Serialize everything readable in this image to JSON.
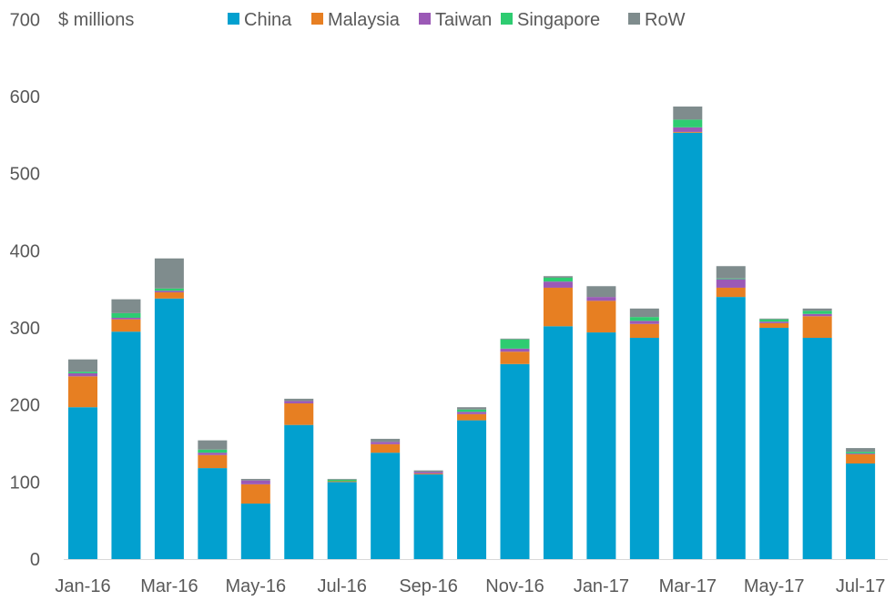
{
  "chart_data": {
    "type": "bar",
    "stacked": true,
    "title": "",
    "ylabel": "$ millions",
    "xlabel": "",
    "ylim": [
      0,
      700
    ],
    "yticks": [
      0,
      100,
      200,
      300,
      400,
      500,
      600,
      700
    ],
    "grid": false,
    "legend_position": "top",
    "categories": [
      "Jan-16",
      "Feb-16",
      "Mar-16",
      "Apr-16",
      "May-16",
      "Jun-16",
      "Jul-16",
      "Aug-16",
      "Sep-16",
      "Oct-16",
      "Nov-16",
      "Dec-16",
      "Jan-17",
      "Feb-17",
      "Mar-17",
      "Apr-17",
      "May-17",
      "Jun-17",
      "Jul-17"
    ],
    "xtick_labels": [
      "Jan-16",
      "Mar-16",
      "May-16",
      "Jul-16",
      "Sep-16",
      "Nov-16",
      "Jan-17",
      "Mar-17",
      "May-17",
      "Jul-17"
    ],
    "series": [
      {
        "name": "China",
        "color": "#02a0cf",
        "values": [
          197,
          295,
          338,
          118,
          72,
          174,
          100,
          138,
          110,
          180,
          253,
          302,
          294,
          287,
          553,
          340,
          300,
          287,
          124
        ]
      },
      {
        "name": "Malaysia",
        "color": "#e77f22",
        "values": [
          40,
          16,
          8,
          17,
          25,
          28,
          1,
          11,
          1,
          8,
          16,
          50,
          41,
          18,
          1,
          12,
          6,
          28,
          12
        ]
      },
      {
        "name": "Taiwan",
        "color": "#9b59b6",
        "values": [
          4,
          2,
          2,
          3,
          5,
          3,
          0,
          3,
          2,
          3,
          4,
          8,
          5,
          4,
          6,
          11,
          2,
          3,
          1
        ]
      },
      {
        "name": "Singapore",
        "color": "#2ecc71",
        "values": [
          2,
          6,
          3,
          4,
          0,
          0,
          2,
          0,
          0,
          3,
          12,
          5,
          0,
          5,
          10,
          1,
          3,
          4,
          2
        ]
      },
      {
        "name": "RoW",
        "color": "#7f8c8d",
        "values": [
          16,
          18,
          39,
          12,
          2,
          3,
          1,
          4,
          2,
          3,
          1,
          2,
          14,
          11,
          17,
          16,
          1,
          3,
          5
        ]
      }
    ]
  }
}
